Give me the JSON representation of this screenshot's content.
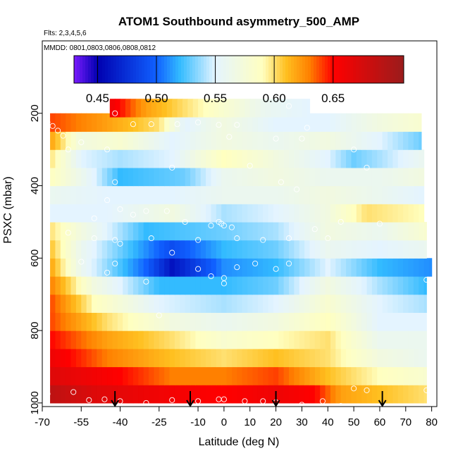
{
  "chart_data": {
    "type": "heatmap",
    "title": "ATOM1 Southbound asymmetry_500_AMP",
    "flights_label": "Flts: 2,3,4,5,6",
    "dates_label": "MMDD: 0801,0803,0806,0808,0812",
    "xlabel": "Latitude (deg N)",
    "ylabel": "PSXC (mbar)",
    "xlim": [
      -70,
      82
    ],
    "ylim": [
      1010,
      0
    ],
    "x_ticks": [
      -70,
      -55,
      -40,
      -25,
      -10,
      0,
      10,
      20,
      30,
      40,
      50,
      60,
      70,
      80
    ],
    "x_tick_labels": [
      "-70",
      "-55",
      "-40",
      "-25",
      "-10",
      "0",
      "10",
      "20",
      "30",
      "40",
      "50",
      "60",
      "70",
      "80"
    ],
    "y_ticks": [
      200,
      400,
      600,
      800,
      1000
    ],
    "y_tick_labels": [
      "200",
      "400",
      "600",
      "800",
      "1000"
    ],
    "colorbar": {
      "range": [
        0.43,
        0.71
      ],
      "ticks": [
        0.45,
        0.5,
        0.55,
        0.6,
        0.65
      ],
      "tick_labels": [
        "0.45",
        "0.50",
        "0.55",
        "0.60",
        "0.65"
      ],
      "colors": [
        "#7a1bff",
        "#0000b0",
        "#1060ff",
        "#33bbff",
        "#e4f4ff",
        "#ffffc0",
        "#ffc020",
        "#ff8000",
        "#ff0000",
        "#9a1c1c"
      ],
      "stops": [
        0.43,
        0.45,
        0.5,
        0.52,
        0.55,
        0.59,
        0.61,
        0.63,
        0.65,
        0.71
      ]
    },
    "levels": [
      {
        "p": 975,
        "lat": [
          -67,
          78
        ],
        "v": [
          [
            -67,
            0.69
          ],
          [
            -50,
            0.67
          ],
          [
            -30,
            0.66
          ],
          [
            0,
            0.65
          ],
          [
            20,
            0.66
          ],
          [
            35,
            0.65
          ],
          [
            45,
            0.62
          ],
          [
            60,
            0.61
          ],
          [
            78,
            0.6
          ]
        ]
      },
      {
        "p": 925,
        "lat": [
          -67,
          78
        ],
        "v": [
          [
            -67,
            0.67
          ],
          [
            -40,
            0.65
          ],
          [
            -20,
            0.63
          ],
          [
            0,
            0.63
          ],
          [
            20,
            0.64
          ],
          [
            40,
            0.61
          ],
          [
            60,
            0.59
          ],
          [
            78,
            0.58
          ]
        ]
      },
      {
        "p": 875,
        "lat": [
          -67,
          78
        ],
        "v": [
          [
            -67,
            0.66
          ],
          [
            -45,
            0.63
          ],
          [
            -20,
            0.61
          ],
          [
            0,
            0.6
          ],
          [
            20,
            0.61
          ],
          [
            40,
            0.6
          ],
          [
            60,
            0.57
          ],
          [
            78,
            0.56
          ]
        ]
      },
      {
        "p": 825,
        "lat": [
          -67,
          78
        ],
        "v": [
          [
            -67,
            0.65
          ],
          [
            -45,
            0.62
          ],
          [
            -20,
            0.6
          ],
          [
            0,
            0.58
          ],
          [
            20,
            0.59
          ],
          [
            40,
            0.6
          ],
          [
            60,
            0.56
          ],
          [
            78,
            0.56
          ]
        ]
      },
      {
        "p": 775,
        "lat": [
          -67,
          78
        ],
        "v": [
          [
            -67,
            0.64
          ],
          [
            -45,
            0.6
          ],
          [
            -20,
            0.57
          ],
          [
            0,
            0.56
          ],
          [
            20,
            0.57
          ],
          [
            40,
            0.59
          ],
          [
            60,
            0.55
          ],
          [
            78,
            0.55
          ]
        ]
      },
      {
        "p": 725,
        "lat": [
          -67,
          78
        ],
        "v": [
          [
            -67,
            0.64
          ],
          [
            -50,
            0.59
          ],
          [
            -25,
            0.55
          ],
          [
            0,
            0.54
          ],
          [
            20,
            0.55
          ],
          [
            40,
            0.58
          ],
          [
            60,
            0.55
          ],
          [
            78,
            0.54
          ]
        ]
      },
      {
        "p": 675,
        "lat": [
          -67,
          78
        ],
        "v": [
          [
            -67,
            0.63
          ],
          [
            -50,
            0.57
          ],
          [
            -25,
            0.52
          ],
          [
            0,
            0.52
          ],
          [
            20,
            0.53
          ],
          [
            40,
            0.57
          ],
          [
            60,
            0.54
          ],
          [
            78,
            0.52
          ]
        ]
      },
      {
        "p": 625,
        "lat": [
          -67,
          80
        ],
        "v": [
          [
            -67,
            0.62
          ],
          [
            -55,
            0.56
          ],
          [
            -30,
            0.5
          ],
          [
            -20,
            0.46
          ],
          [
            0,
            0.51
          ],
          [
            20,
            0.52
          ],
          [
            40,
            0.55
          ],
          [
            60,
            0.52
          ],
          [
            80,
            0.51
          ]
        ]
      },
      {
        "p": 575,
        "lat": [
          -67,
          78
        ],
        "v": [
          [
            -67,
            0.61
          ],
          [
            -55,
            0.56
          ],
          [
            -30,
            0.51
          ],
          [
            -20,
            0.49
          ],
          [
            0,
            0.52
          ],
          [
            20,
            0.53
          ],
          [
            40,
            0.56
          ],
          [
            60,
            0.55
          ],
          [
            78,
            0.56
          ]
        ]
      },
      {
        "p": 525,
        "lat": [
          -67,
          78
        ],
        "v": [
          [
            -67,
            0.6
          ],
          [
            -55,
            0.57
          ],
          [
            -30,
            0.52
          ],
          [
            0,
            0.53
          ],
          [
            20,
            0.54
          ],
          [
            40,
            0.57
          ],
          [
            60,
            0.56
          ],
          [
            78,
            0.58
          ]
        ]
      },
      {
        "p": 475,
        "lat": [
          -67,
          77
        ],
        "v": [
          [
            -67,
            0.55
          ],
          [
            -45,
            0.55
          ],
          [
            -20,
            0.57
          ],
          [
            0,
            0.54
          ],
          [
            20,
            0.55
          ],
          [
            40,
            0.57
          ],
          [
            55,
            0.6
          ],
          [
            77,
            0.59
          ]
        ]
      },
      {
        "p": 425,
        "lat": [
          -67,
          77
        ],
        "v": [
          [
            -67,
            0.56
          ],
          [
            -45,
            0.55
          ],
          [
            -20,
            0.55
          ],
          [
            0,
            0.56
          ],
          [
            20,
            0.56
          ],
          [
            40,
            0.57
          ],
          [
            60,
            0.56
          ],
          [
            77,
            0.55
          ]
        ]
      },
      {
        "p": 375,
        "lat": [
          -67,
          77
        ],
        "v": [
          [
            -67,
            0.59
          ],
          [
            -50,
            0.55
          ],
          [
            -40,
            0.52
          ],
          [
            -15,
            0.53
          ],
          [
            0,
            0.56
          ],
          [
            20,
            0.57
          ],
          [
            40,
            0.56
          ],
          [
            60,
            0.56
          ],
          [
            77,
            0.57
          ]
        ]
      },
      {
        "p": 325,
        "lat": [
          -67,
          77
        ],
        "v": [
          [
            -67,
            0.6
          ],
          [
            -55,
            0.55
          ],
          [
            -40,
            0.54
          ],
          [
            -20,
            0.55
          ],
          [
            0,
            0.59
          ],
          [
            20,
            0.57
          ],
          [
            40,
            0.55
          ],
          [
            50,
            0.53
          ],
          [
            60,
            0.54
          ],
          [
            77,
            0.56
          ]
        ]
      },
      {
        "p": 275,
        "lat": [
          -67,
          76
        ],
        "v": [
          [
            -67,
            0.62
          ],
          [
            -55,
            0.57
          ],
          [
            -40,
            0.58
          ],
          [
            -20,
            0.55
          ],
          [
            0,
            0.57
          ],
          [
            20,
            0.56
          ],
          [
            40,
            0.57
          ],
          [
            60,
            0.55
          ],
          [
            76,
            0.53
          ]
        ]
      },
      {
        "p": 225,
        "lat": [
          -67,
          76
        ],
        "v": [
          [
            -67,
            0.64
          ],
          [
            -45,
            0.62
          ],
          [
            -25,
            0.6
          ],
          [
            -15,
            0.55
          ],
          [
            0,
            0.57
          ],
          [
            20,
            0.55
          ],
          [
            40,
            0.55
          ],
          [
            60,
            0.57
          ],
          [
            76,
            0.58
          ]
        ]
      },
      {
        "p": 185,
        "lat": [
          -44,
          33
        ],
        "v": [
          [
            -44,
            0.66
          ],
          [
            -30,
            0.62
          ],
          [
            -15,
            0.6
          ],
          [
            0,
            0.58
          ],
          [
            15,
            0.56
          ],
          [
            33,
            0.55
          ]
        ]
      }
    ],
    "obs_points": [
      [
        -68,
        225
      ],
      [
        -66,
        235
      ],
      [
        -64,
        248
      ],
      [
        -62,
        262
      ],
      [
        -60,
        300
      ],
      [
        -42,
        200
      ],
      [
        -35,
        230
      ],
      [
        -28,
        230
      ],
      [
        -18,
        230
      ],
      [
        -10,
        225
      ],
      [
        -2,
        232
      ],
      [
        5,
        232
      ],
      [
        25,
        180
      ],
      [
        32,
        240
      ],
      [
        -55,
        280
      ],
      [
        -45,
        300
      ],
      [
        -20,
        350
      ],
      [
        2,
        265
      ],
      [
        20,
        270
      ],
      [
        30,
        270
      ],
      [
        50,
        300
      ],
      [
        -42,
        390
      ],
      [
        10,
        345
      ],
      [
        22,
        390
      ],
      [
        28,
        410
      ],
      [
        55,
        350
      ],
      [
        -30,
        470
      ],
      [
        -22,
        470
      ],
      [
        -35,
        480
      ],
      [
        -50,
        490
      ],
      [
        -45,
        440
      ],
      [
        -40,
        465
      ],
      [
        -15,
        500
      ],
      [
        -5,
        510
      ],
      [
        -2,
        500
      ],
      [
        0,
        510
      ],
      [
        -1,
        505
      ],
      [
        3,
        515
      ],
      [
        35,
        520
      ],
      [
        45,
        500
      ],
      [
        60,
        505
      ],
      [
        -60,
        530
      ],
      [
        -50,
        545
      ],
      [
        -42,
        550
      ],
      [
        -40,
        560
      ],
      [
        -28,
        545
      ],
      [
        -10,
        550
      ],
      [
        5,
        545
      ],
      [
        15,
        550
      ],
      [
        25,
        545
      ],
      [
        40,
        545
      ],
      [
        -20,
        585
      ],
      [
        -42,
        615
      ],
      [
        -55,
        610
      ],
      [
        -45,
        640
      ],
      [
        -10,
        630
      ],
      [
        -5,
        650
      ],
      [
        0,
        655
      ],
      [
        5,
        625
      ],
      [
        12,
        615
      ],
      [
        25,
        615
      ],
      [
        20,
        630
      ],
      [
        -30,
        665
      ],
      [
        0,
        670
      ],
      [
        78,
        660
      ],
      [
        -25,
        758
      ],
      [
        -68,
        975
      ],
      [
        -58,
        970
      ],
      [
        -52,
        992
      ],
      [
        -46,
        990
      ],
      [
        -40,
        995
      ],
      [
        -30,
        1000
      ],
      [
        -20,
        992
      ],
      [
        -10,
        995
      ],
      [
        -2,
        990
      ],
      [
        0,
        990
      ],
      [
        8,
        995
      ],
      [
        15,
        995
      ],
      [
        20,
        998
      ],
      [
        30,
        1005
      ],
      [
        38,
        995
      ],
      [
        45,
        1008
      ],
      [
        50,
        960
      ],
      [
        55,
        965
      ],
      [
        78,
        965
      ]
    ],
    "flight_arrows": [
      -42,
      -13,
      20,
      61
    ]
  }
}
